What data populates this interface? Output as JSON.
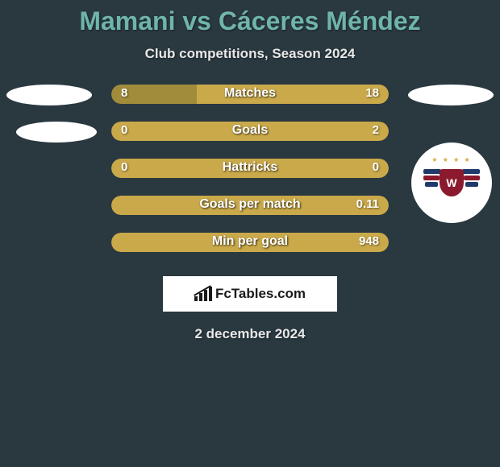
{
  "title": "Mamani vs Cáceres Méndez",
  "subtitle": "Club competitions, Season 2024",
  "date": "2 december 2024",
  "fctables_label": "FcTables.com",
  "colors": {
    "background": "#2a3840",
    "title": "#6fb5a8",
    "subtitle": "#e8e8e8",
    "left": "#a08c3a",
    "right": "#c9a94a",
    "date": "#e8e8e8",
    "stat_text": "#ffffff"
  },
  "club_logo": {
    "stripe_colors": [
      "#1f3a6b",
      "#8b1a2e",
      "#1f3a6b"
    ],
    "shield_color": "#8b1a2e",
    "shield_letter": "W",
    "star_color": "#d4a83a"
  },
  "stats": [
    {
      "label": "Matches",
      "left_val": "8",
      "right_val": "18",
      "left_pct": 30.77,
      "right_pct": 69.23
    },
    {
      "label": "Goals",
      "left_val": "0",
      "right_val": "2",
      "left_pct": 0,
      "right_pct": 100
    },
    {
      "label": "Hattricks",
      "left_val": "0",
      "right_val": "0",
      "left_pct": 50,
      "right_pct": 50
    },
    {
      "label": "Goals per match",
      "left_val": "",
      "right_val": "0.11",
      "left_pct": 0,
      "right_pct": 100
    },
    {
      "label": "Min per goal",
      "left_val": "",
      "right_val": "948",
      "left_pct": 0,
      "right_pct": 100
    }
  ]
}
